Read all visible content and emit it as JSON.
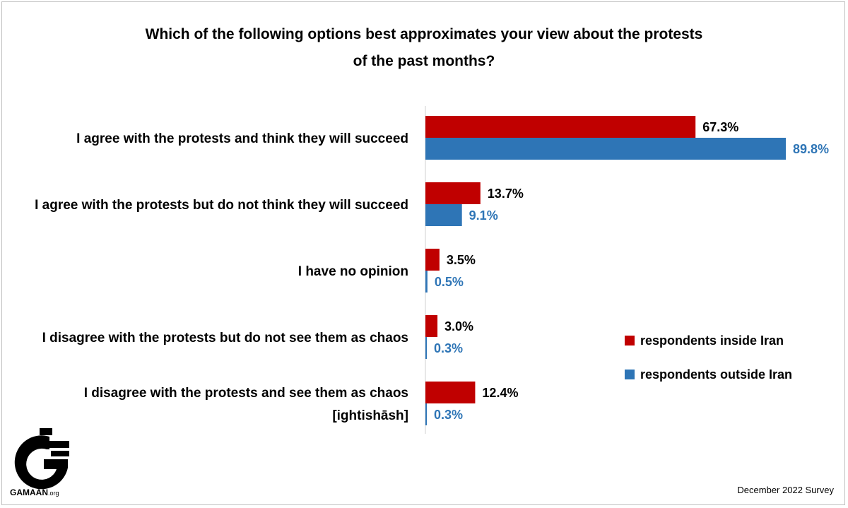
{
  "title_lines": [
    "Which of the following options best approximates your view about the protests",
    "of the past months?"
  ],
  "colors": {
    "inside": "#c00000",
    "outside": "#2e75b6"
  },
  "legend": {
    "inside_label": "respondents inside Iran",
    "outside_label": "respondents outside Iran"
  },
  "chart_data": {
    "type": "bar",
    "orientation": "horizontal",
    "title": "Which of the following options best approximates your view about the protests of the past months?",
    "categories": [
      [
        "I agree with the protests and think they will succeed"
      ],
      [
        "I agree with the protests but do not think they will succeed"
      ],
      [
        "I have no opinion"
      ],
      [
        "I disagree with the protests but do not see them as chaos"
      ],
      [
        "I disagree with the protests and see them as chaos",
        "[ightishāsh]"
      ]
    ],
    "series": [
      {
        "name": "respondents inside Iran",
        "color": "#c00000",
        "values": [
          67.3,
          13.7,
          3.5,
          3.0,
          12.4
        ],
        "labels": [
          "67.3%",
          "13.7%",
          "3.5%",
          "3.0%",
          "12.4%"
        ]
      },
      {
        "name": "respondents outside Iran",
        "color": "#2e75b6",
        "values": [
          89.8,
          9.1,
          0.5,
          0.3,
          0.3
        ],
        "labels": [
          "89.8%",
          "9.1%",
          "0.5%",
          "0.3%",
          "0.3%"
        ]
      }
    ],
    "xlim": [
      0,
      89.8
    ],
    "grid": false,
    "legend_position": "right"
  },
  "logo": {
    "name": "GAMAAN",
    "suffix": ".org"
  },
  "footer": "December 2022 Survey"
}
